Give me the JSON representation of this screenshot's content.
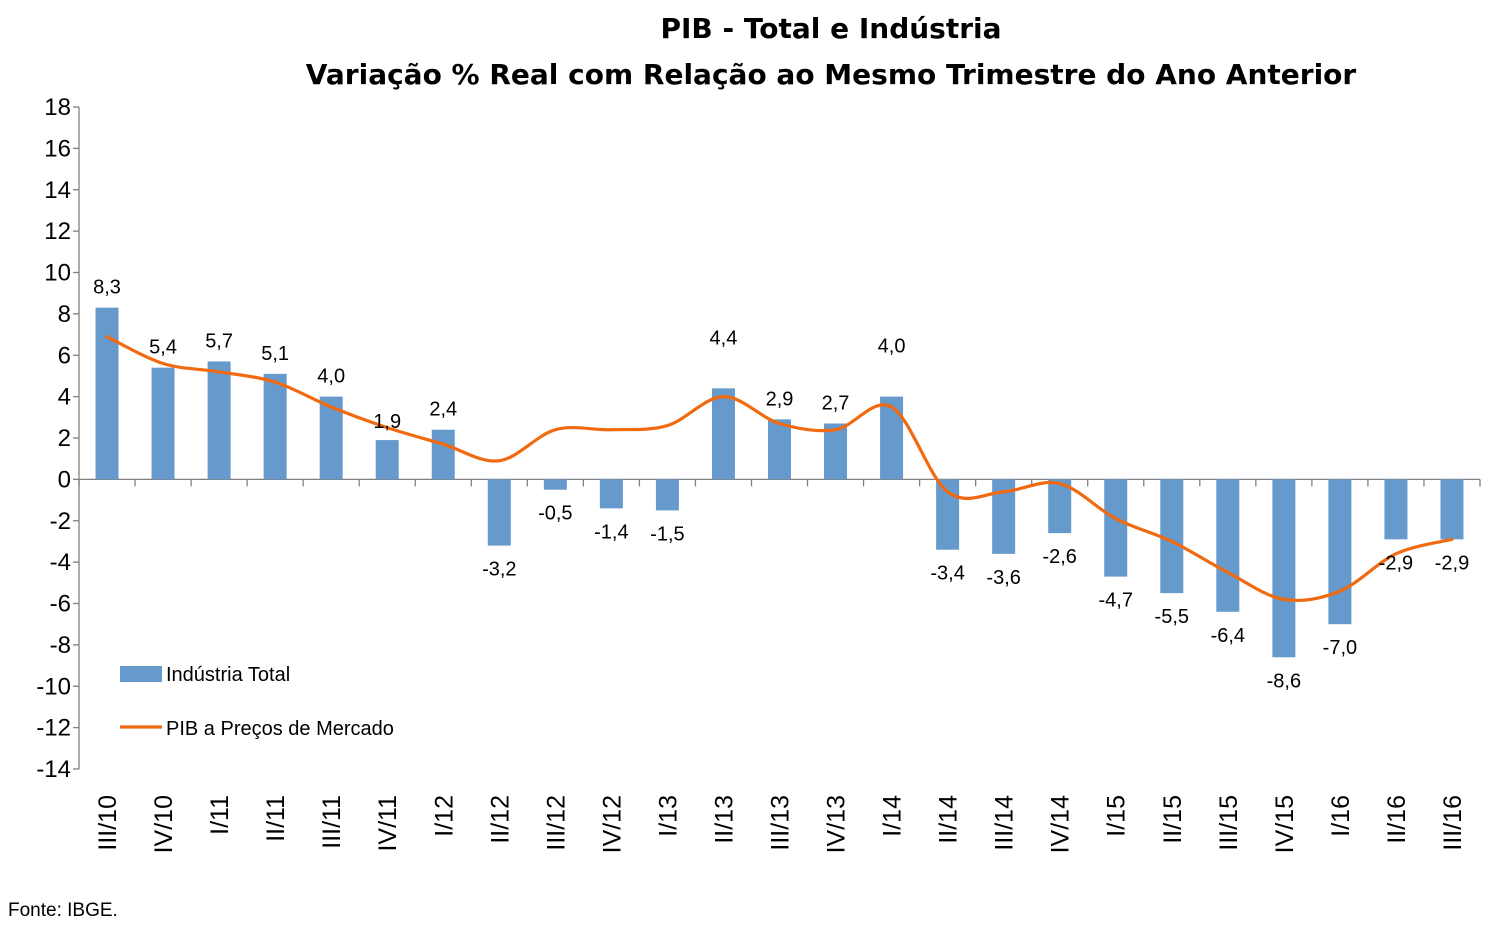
{
  "chart_data": {
    "type": "bar",
    "title": "PIB - Total e Indústria",
    "subtitle": "Variação % Real com Relação ao Mesmo Trimestre do Ano Anterior",
    "categories": [
      "III/10",
      "IV/10",
      "I/11",
      "II/11",
      "III/11",
      "IV/11",
      "I/12",
      "II/12",
      "III/12",
      "IV/12",
      "I/13",
      "II/13",
      "III/13",
      "IV/13",
      "I/14",
      "II/14",
      "III/14",
      "IV/14",
      "I/15",
      "II/15",
      "III/15",
      "IV/15",
      "I/16",
      "II/16",
      "III/16"
    ],
    "ylim": [
      -14,
      18
    ],
    "yticks": [
      "18",
      "16",
      "14",
      "12",
      "10",
      "8",
      "6",
      "4",
      "2",
      "0",
      "-2",
      "-4",
      "-6",
      "-8",
      "-10",
      "-12",
      "-14"
    ],
    "grid": false,
    "legend_position": "bottom-left",
    "series": [
      {
        "name": "Indústria Total",
        "type": "bar",
        "color": "#6699cc",
        "values": [
          8.3,
          5.4,
          5.7,
          5.1,
          4.0,
          1.9,
          2.4,
          -3.2,
          -0.5,
          -1.4,
          -1.5,
          4.4,
          2.9,
          2.7,
          4.0,
          -3.4,
          -3.6,
          -2.6,
          -4.7,
          -5.5,
          -6.4,
          -8.6,
          -7.0,
          -2.9,
          -2.9
        ],
        "labels": [
          "8,3",
          "5,4",
          "5,7",
          "5,1",
          "4,0",
          "1,9",
          "2,4",
          "-3,2",
          "-0,5",
          "-1,4",
          "-1,5",
          "4,4",
          "2,9",
          "2,7",
          "4,0",
          "-3,4",
          "-3,6",
          "-2,6",
          "-4,7",
          "-5,5",
          "-6,4",
          "-8,6",
          "-7,0",
          "-2,9",
          "-2,9"
        ]
      },
      {
        "name": "PIB a Preços de Mercado",
        "type": "line",
        "color": "#f26a10",
        "values": [
          6.9,
          5.6,
          5.2,
          4.7,
          3.5,
          2.5,
          1.7,
          0.9,
          2.4,
          2.4,
          2.6,
          4.0,
          2.7,
          2.4,
          3.5,
          -0.6,
          -0.6,
          -0.2,
          -1.9,
          -3.0,
          -4.5,
          -5.8,
          -5.4,
          -3.6,
          -2.9
        ]
      }
    ]
  },
  "source": "Fonte: IBGE."
}
